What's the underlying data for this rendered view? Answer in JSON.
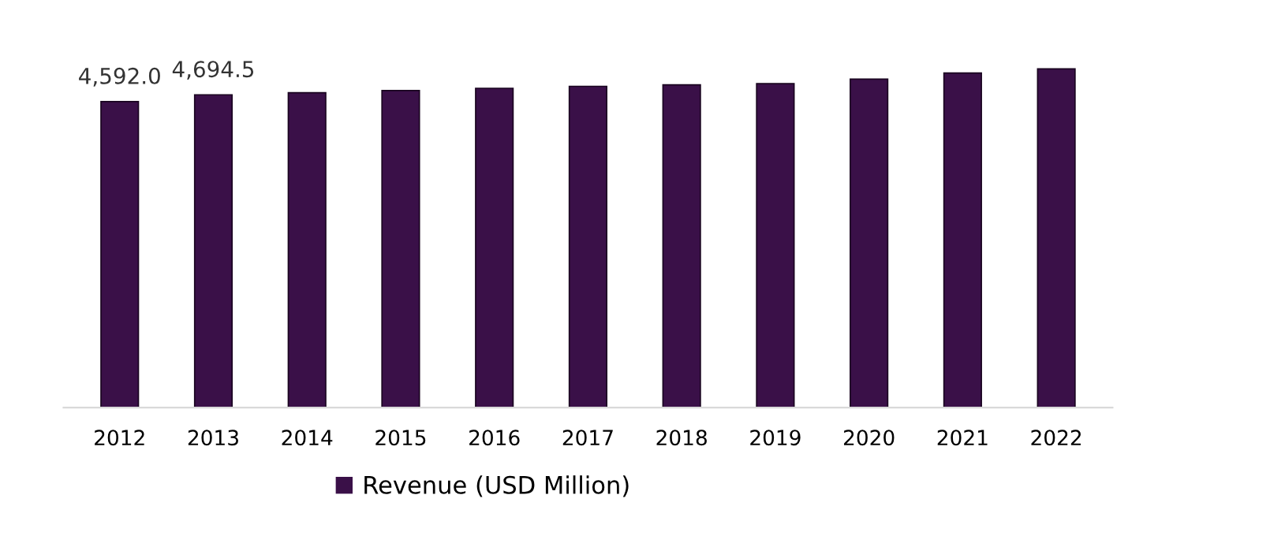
{
  "chart_data": {
    "type": "bar",
    "categories": [
      "2012",
      "2013",
      "2014",
      "2015",
      "2016",
      "2017",
      "2018",
      "2019",
      "2020",
      "2021",
      "2022"
    ],
    "series": [
      {
        "name": "Revenue (USD Million)",
        "color": "#3a1048",
        "values": [
          4592.0,
          4694.5,
          4725,
          4758,
          4792,
          4822,
          4844,
          4861,
          4929,
          5022,
          5083
        ],
        "value_labels": [
          "4,592.0",
          "4,694.5",
          null,
          null,
          null,
          null,
          null,
          null,
          null,
          null,
          null
        ]
      }
    ],
    "tick_labels": "x",
    "legend": "bottom"
  }
}
